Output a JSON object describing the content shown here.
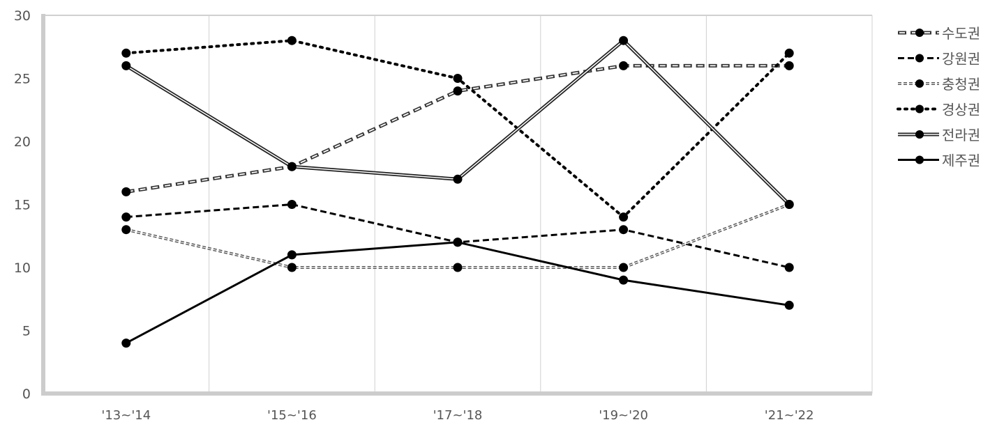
{
  "chart_data": {
    "type": "line",
    "title": "",
    "xlabel": "",
    "ylabel": "",
    "categories": [
      "'13~'14",
      "'15~'16",
      "'17~'18",
      "'19~'20",
      "'21~'22"
    ],
    "ylim": [
      0,
      30
    ],
    "yticks": [
      0,
      5,
      10,
      15,
      20,
      25,
      30
    ],
    "grid": "vertical",
    "legend_position": "right",
    "series": [
      {
        "name": "수도권",
        "style": "double-dashed",
        "values": [
          16,
          18,
          24,
          26,
          26
        ]
      },
      {
        "name": "강원권",
        "style": "dashed",
        "values": [
          14,
          15,
          12,
          13,
          10
        ]
      },
      {
        "name": "충청권",
        "style": "double-dotted",
        "values": [
          13,
          10,
          10,
          10,
          15
        ]
      },
      {
        "name": "경상권",
        "style": "dotted",
        "values": [
          27,
          28,
          25,
          14,
          27
        ]
      },
      {
        "name": "전라권",
        "style": "double-solid",
        "values": [
          26,
          18,
          17,
          28,
          15
        ]
      },
      {
        "name": "제주권",
        "style": "solid",
        "values": [
          4,
          11,
          12,
          9,
          7
        ]
      }
    ],
    "colors": {
      "line": "#000000",
      "axis": "#cccccc",
      "grid": "#d0d0d0",
      "text": "#555555"
    }
  }
}
